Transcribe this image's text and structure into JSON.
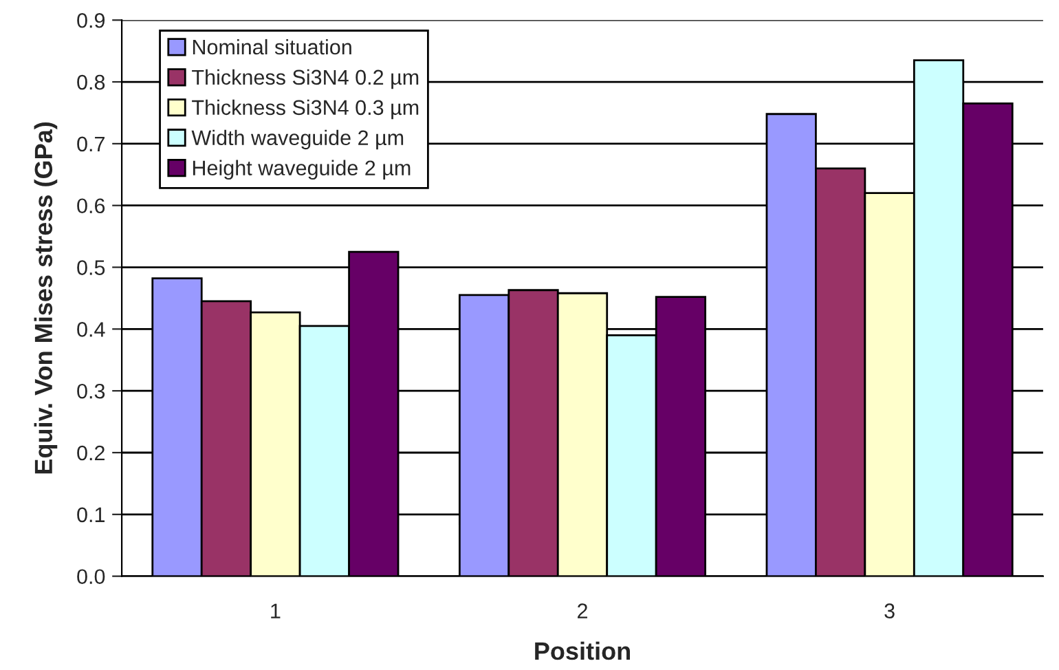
{
  "chart_data": {
    "type": "bar",
    "xlabel": "Position",
    "ylabel": "Equiv. Von Mises stress (GPa)",
    "categories": [
      "1",
      "2",
      "3"
    ],
    "series": [
      {
        "name": "Nominal situation",
        "color": "#9999ff",
        "values": [
          0.482,
          0.455,
          0.748
        ]
      },
      {
        "name": "Thickness Si3N4 0.2 µm",
        "color": "#993366",
        "values": [
          0.445,
          0.463,
          0.66
        ]
      },
      {
        "name": "Thickness Si3N4 0.3 µm",
        "color": "#ffffcc",
        "values": [
          0.427,
          0.458,
          0.62
        ]
      },
      {
        "name": "Width waveguide 2 µm",
        "color": "#ccffff",
        "values": [
          0.405,
          0.39,
          0.835
        ]
      },
      {
        "name": "Height waveguide 2 µm",
        "color": "#660066",
        "values": [
          0.525,
          0.452,
          0.765
        ]
      }
    ],
    "ylim": [
      0,
      0.9
    ],
    "yticks": [
      {
        "value": 0,
        "label": "0.0"
      },
      0.1,
      0.2,
      0.3,
      0.4,
      0.5,
      0.6,
      0.7,
      0.8,
      0.9
    ],
    "grid": "y",
    "legend": "top left"
  }
}
